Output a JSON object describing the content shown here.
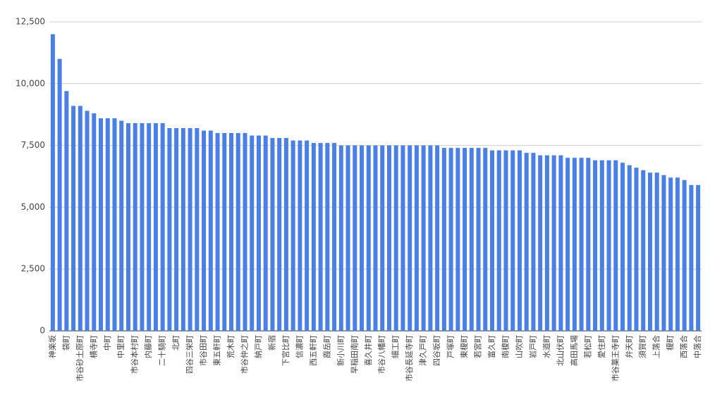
{
  "chart_data": {
    "type": "bar",
    "color": "#4a7fe6",
    "grid": true,
    "ylim": [
      0,
      12500
    ],
    "yticks": [
      0,
      {
        "value": 2500,
        "label": "2,500"
      },
      {
        "value": 5000,
        "label": "5,000"
      },
      {
        "value": 7500,
        "label": "7,500"
      },
      {
        "value": 10000,
        "label": "10,000"
      },
      {
        "value": 12500,
        "label": "12,500"
      }
    ],
    "categories": [
      "神楽坂",
      null,
      "袋町",
      null,
      "市谷砂土原町",
      null,
      "横寺町",
      null,
      "中町",
      null,
      "中里町",
      null,
      "市谷本村町",
      null,
      "内藤町",
      null,
      "二十騎町",
      null,
      "北町",
      null,
      "四谷三栄町",
      null,
      "市谷田町",
      null,
      "東五軒町",
      null,
      "荒木町",
      null,
      "市谷仲之町",
      null,
      "納戸町",
      null,
      "新宿",
      null,
      "下宮比町",
      null,
      "信濃町",
      null,
      "西五軒町",
      null,
      "霞岳町",
      null,
      "新小川町",
      null,
      "早稲田南町",
      null,
      "喜久井町",
      null,
      "市谷八幡町",
      null,
      "細工町",
      null,
      "市谷長延寺町",
      null,
      "津久戸町",
      null,
      "四谷坂町",
      null,
      "戸塚町",
      null,
      "東榎町",
      null,
      "若宮町",
      null,
      "富久町",
      null,
      "南榎町",
      null,
      "山吹町",
      null,
      "岩戸町",
      null,
      "水道町",
      null,
      "北山伏町",
      null,
      "高田馬場",
      null,
      "若松町",
      null,
      "愛住町",
      null,
      "市谷薬王寺町",
      null,
      "弁天町",
      null,
      "須賀町",
      null,
      "上落合",
      null,
      "榎町",
      null,
      "西落合",
      null,
      "中落合"
    ],
    "values": [
      12000,
      11000,
      9700,
      9100,
      9100,
      8900,
      8800,
      8600,
      8600,
      8600,
      8500,
      8400,
      8400,
      8400,
      8400,
      8400,
      8400,
      8200,
      8200,
      8200,
      8200,
      8200,
      8100,
      8100,
      8000,
      8000,
      8000,
      8000,
      8000,
      7900,
      7900,
      7900,
      7800,
      7800,
      7800,
      7700,
      7700,
      7700,
      7600,
      7600,
      7600,
      7600,
      7500,
      7500,
      7500,
      7500,
      7500,
      7500,
      7500,
      7500,
      7500,
      7500,
      7500,
      7500,
      7500,
      7500,
      7500,
      7400,
      7400,
      7400,
      7400,
      7400,
      7400,
      7400,
      7300,
      7300,
      7300,
      7300,
      7300,
      7200,
      7200,
      7100,
      7100,
      7100,
      7100,
      7000,
      7000,
      7000,
      7000,
      6900,
      6900,
      6900,
      6900,
      6800,
      6700,
      6600,
      6500,
      6400,
      6400,
      6300,
      6200,
      6200,
      6100,
      5900,
      5900
    ]
  }
}
